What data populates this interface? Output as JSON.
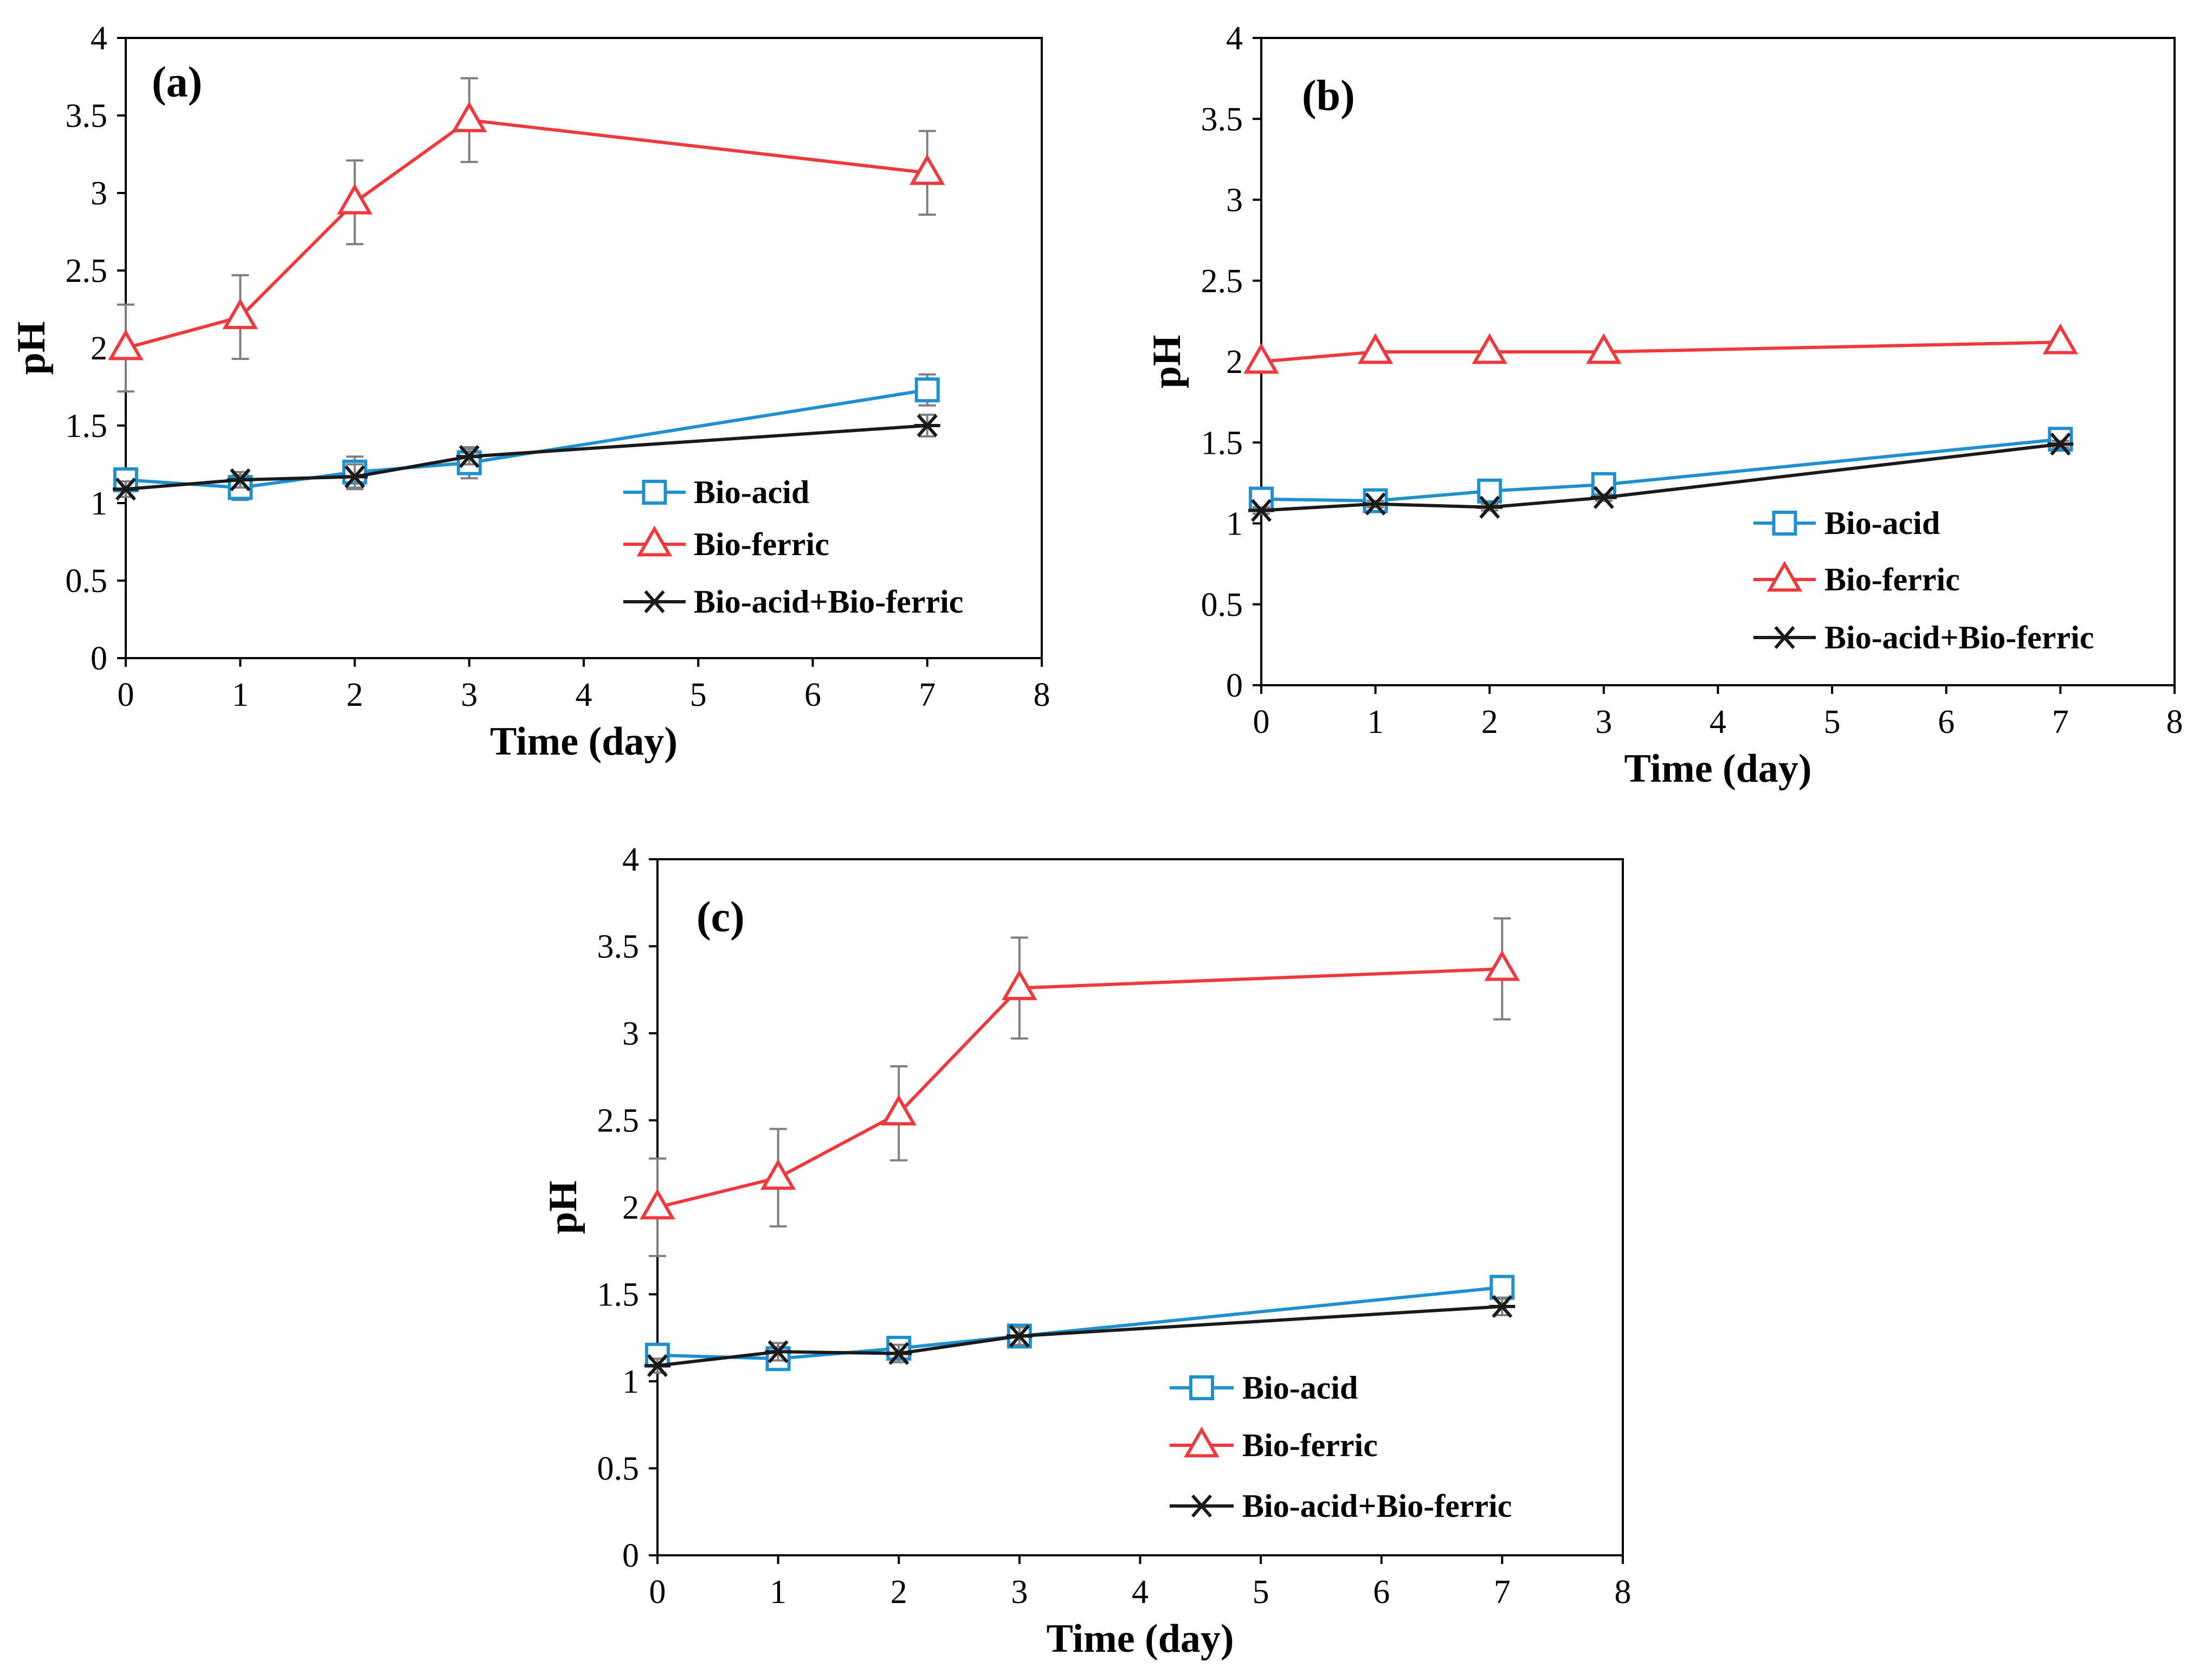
{
  "colors": {
    "bio_acid": "#1e90d0",
    "bio_ferric": "#f0393c",
    "combined": "#1a1a1a",
    "axis": "#000000",
    "error_bar": "#7f7f7f"
  },
  "chart_data": [
    {
      "type": "line",
      "panel_label": "(a)",
      "xlabel": "Time (day)",
      "ylabel": "pH",
      "xlim": [
        0,
        8
      ],
      "ylim": [
        0,
        4
      ],
      "x_ticks": [
        "0",
        "1",
        "2",
        "3",
        "4",
        "5",
        "6",
        "7",
        "8"
      ],
      "y_ticks": [
        "0",
        "0.5",
        "1",
        "1.5",
        "2",
        "2.5",
        "3",
        "3.5",
        "4"
      ],
      "grid": false,
      "legend_position": "bottom-right",
      "series": [
        {
          "name": "Bio-acid",
          "marker": "square",
          "color_key": "bio_acid",
          "x": [
            0,
            1,
            2,
            3,
            7
          ],
          "y": [
            1.15,
            1.1,
            1.2,
            1.26,
            1.73
          ],
          "error": [
            0.05,
            0.08,
            0.1,
            0.1,
            0.1
          ]
        },
        {
          "name": "Bio-ferric",
          "marker": "triangle",
          "color_key": "bio_ferric",
          "x": [
            0,
            1,
            2,
            3,
            7
          ],
          "y": [
            2.0,
            2.2,
            2.94,
            3.47,
            3.13
          ],
          "error": [
            0.28,
            0.27,
            0.27,
            0.27,
            0.27
          ]
        },
        {
          "name": "Bio-acid+Bio-ferric",
          "marker": "star",
          "color_key": "combined",
          "x": [
            0,
            1,
            2,
            3,
            7
          ],
          "y": [
            1.09,
            1.15,
            1.17,
            1.3,
            1.5
          ],
          "error": [
            0.05,
            0.05,
            0.08,
            0.05,
            0.07
          ]
        }
      ]
    },
    {
      "type": "line",
      "panel_label": "(b)",
      "xlabel": "Time (day)",
      "ylabel": "pH",
      "xlim": [
        0,
        8
      ],
      "ylim": [
        0,
        4
      ],
      "x_ticks": [
        "0",
        "1",
        "2",
        "3",
        "4",
        "5",
        "6",
        "7",
        "8"
      ],
      "y_ticks": [
        "0",
        "0.5",
        "1",
        "1.5",
        "2",
        "2.5",
        "3",
        "3.5",
        "4"
      ],
      "grid": false,
      "legend_position": "bottom-right",
      "series": [
        {
          "name": "Bio-acid",
          "marker": "square",
          "color_key": "bio_acid",
          "x": [
            0,
            1,
            2,
            3,
            7
          ],
          "y": [
            1.15,
            1.14,
            1.2,
            1.24,
            1.52
          ],
          "error": [
            0.02,
            0.02,
            0.02,
            0.02,
            0.02
          ]
        },
        {
          "name": "Bio-ferric",
          "marker": "triangle",
          "color_key": "bio_ferric",
          "x": [
            0,
            1,
            2,
            3,
            7
          ],
          "y": [
            2.0,
            2.06,
            2.06,
            2.06,
            2.12
          ],
          "error": [
            0.02,
            0.02,
            0.02,
            0.02,
            0.02
          ]
        },
        {
          "name": "Bio-acid+Bio-ferric",
          "marker": "star",
          "color_key": "combined",
          "x": [
            0,
            1,
            2,
            3,
            7
          ],
          "y": [
            1.08,
            1.12,
            1.1,
            1.16,
            1.49
          ],
          "error": [
            0.02,
            0.02,
            0.02,
            0.02,
            0.02
          ]
        }
      ]
    },
    {
      "type": "line",
      "panel_label": "(c)",
      "xlabel": "Time (day)",
      "ylabel": "pH",
      "xlim": [
        0,
        8
      ],
      "ylim": [
        0,
        4
      ],
      "x_ticks": [
        "0",
        "1",
        "2",
        "3",
        "4",
        "5",
        "6",
        "7",
        "8"
      ],
      "y_ticks": [
        "0",
        "0.5",
        "1",
        "1.5",
        "2",
        "2.5",
        "3",
        "3.5",
        "4"
      ],
      "grid": false,
      "legend_position": "bottom-right",
      "series": [
        {
          "name": "Bio-acid",
          "marker": "square",
          "color_key": "bio_acid",
          "x": [
            0,
            1,
            2,
            3,
            7
          ],
          "y": [
            1.15,
            1.13,
            1.19,
            1.26,
            1.54
          ],
          "error": [
            0.04,
            0.05,
            0.05,
            0.05,
            0.05
          ]
        },
        {
          "name": "Bio-ferric",
          "marker": "triangle",
          "color_key": "bio_ferric",
          "x": [
            0,
            1,
            2,
            3,
            7
          ],
          "y": [
            2.0,
            2.17,
            2.54,
            3.26,
            3.37
          ],
          "error": [
            0.28,
            0.28,
            0.27,
            0.29,
            0.29
          ]
        },
        {
          "name": "Bio-acid+Bio-ferric",
          "marker": "star",
          "color_key": "combined",
          "x": [
            0,
            1,
            2,
            3,
            7
          ],
          "y": [
            1.09,
            1.17,
            1.16,
            1.26,
            1.43
          ],
          "error": [
            0.04,
            0.05,
            0.05,
            0.05,
            0.05
          ]
        }
      ]
    }
  ]
}
